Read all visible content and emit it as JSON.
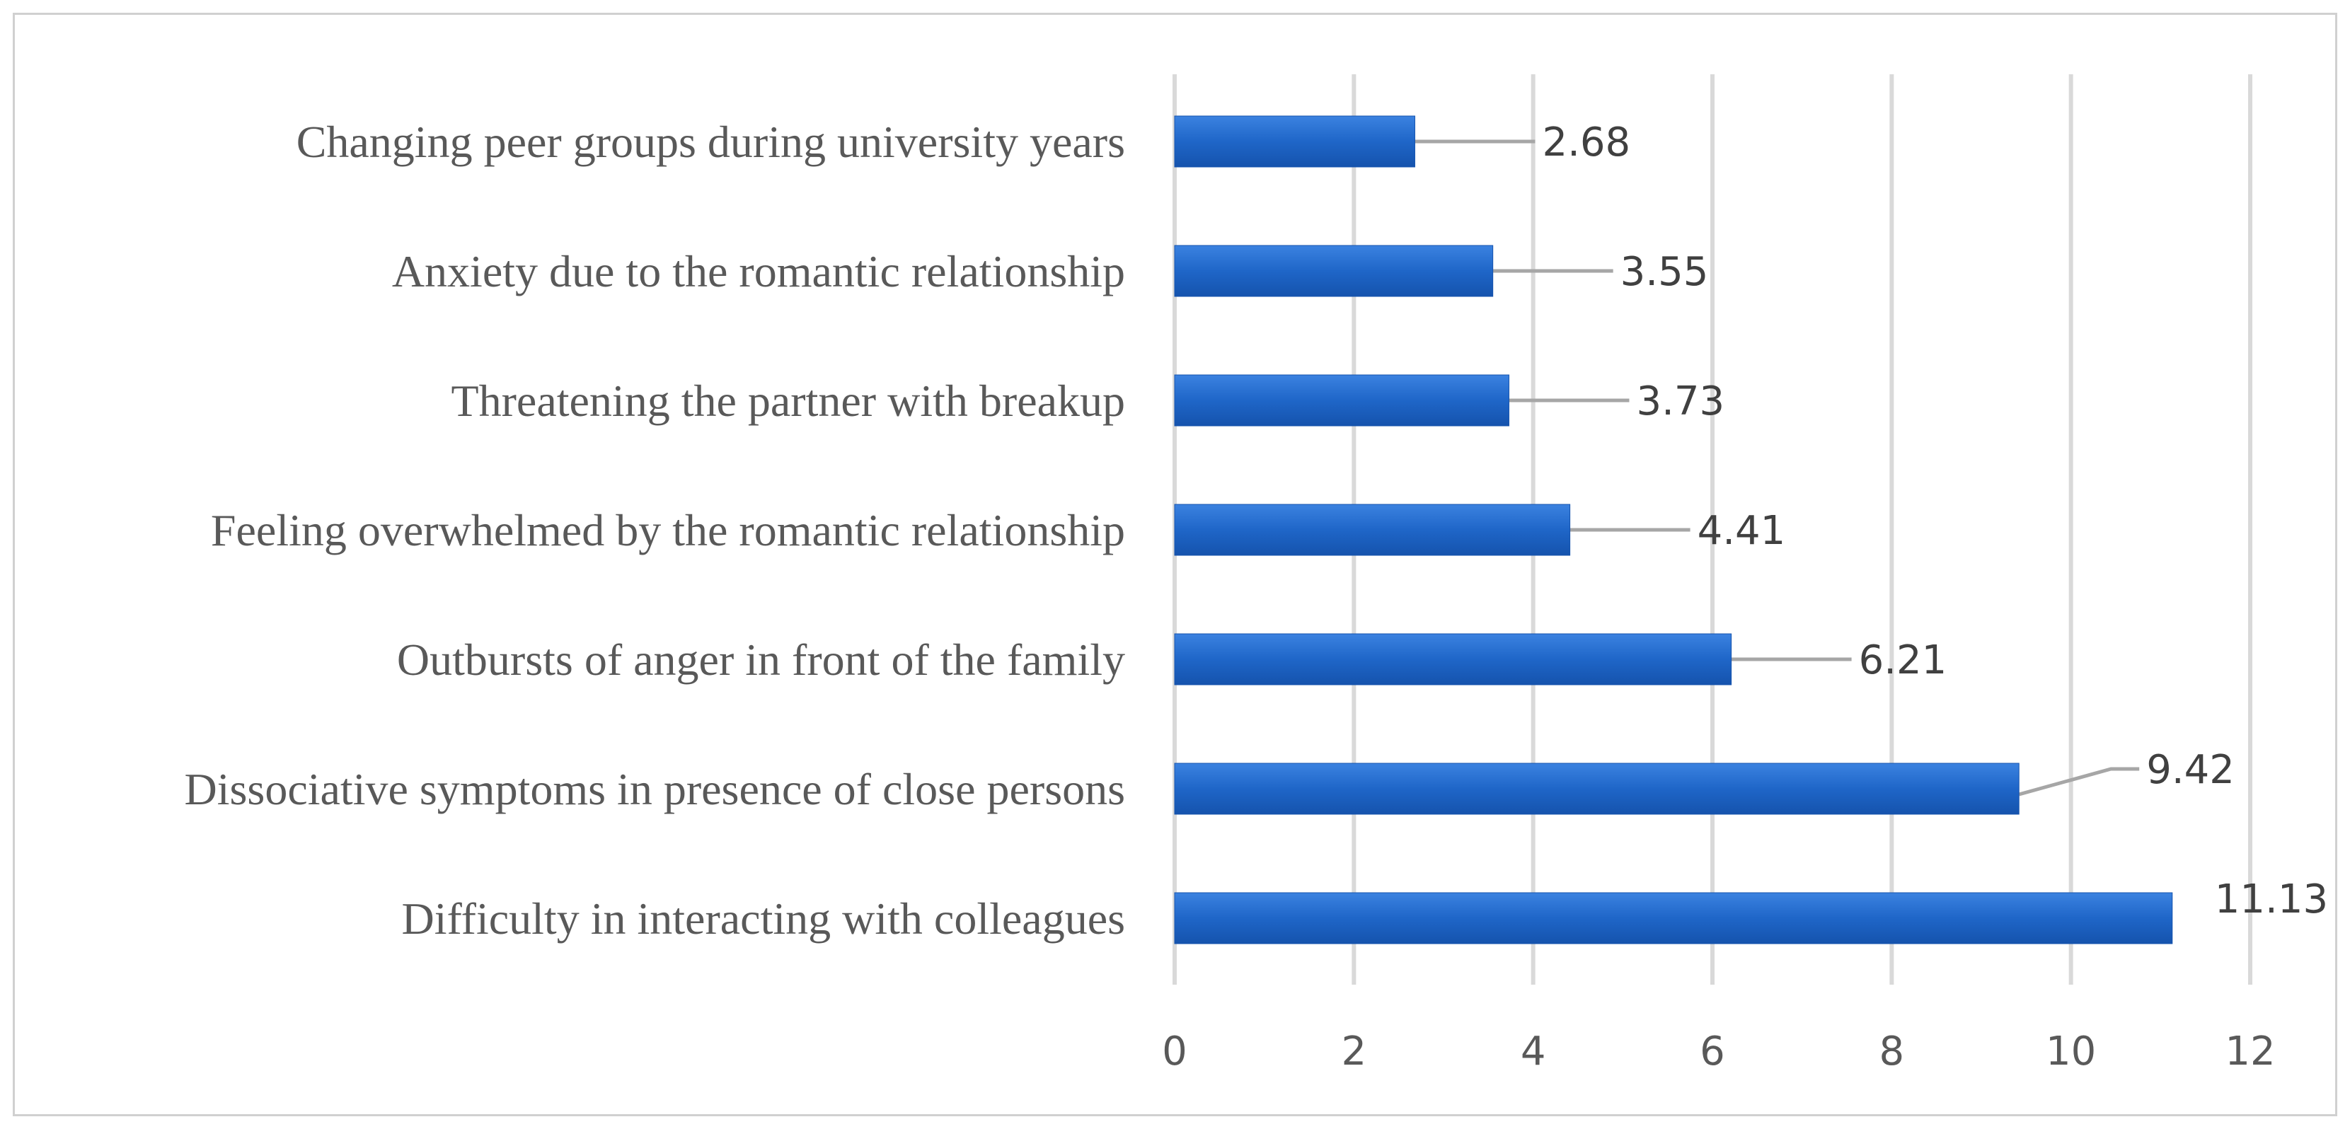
{
  "chart_data": {
    "type": "bar",
    "orientation": "horizontal",
    "categories": [
      "Changing peer groups during university years",
      "Anxiety due to the romantic relationship",
      "Threatening the partner with breakup",
      "Feeling overwhelmed by the romantic relationship",
      "Outbursts of anger in front of the family",
      "Dissociative symptoms in presence of close persons",
      "Difficulty in interacting with colleagues"
    ],
    "values": [
      2.68,
      3.55,
      3.73,
      4.41,
      6.21,
      9.42,
      11.13
    ],
    "data_labels": [
      "2.68",
      "3.55",
      "3.73",
      "4.41",
      "6.21",
      "9.42",
      "11.13"
    ],
    "xticks": [
      "0",
      "2",
      "4",
      "6",
      "8",
      "10",
      "12"
    ],
    "xlim": [
      0,
      12
    ],
    "grid": true,
    "legend": "none",
    "title": "",
    "xlabel": "",
    "ylabel": "",
    "colors": {
      "bar": "#1f66c8",
      "bar_light": "#3b82e0",
      "bar_dark": "#1553ad",
      "grid": "#d9d9d9",
      "leader": "#a6a6a6"
    }
  }
}
